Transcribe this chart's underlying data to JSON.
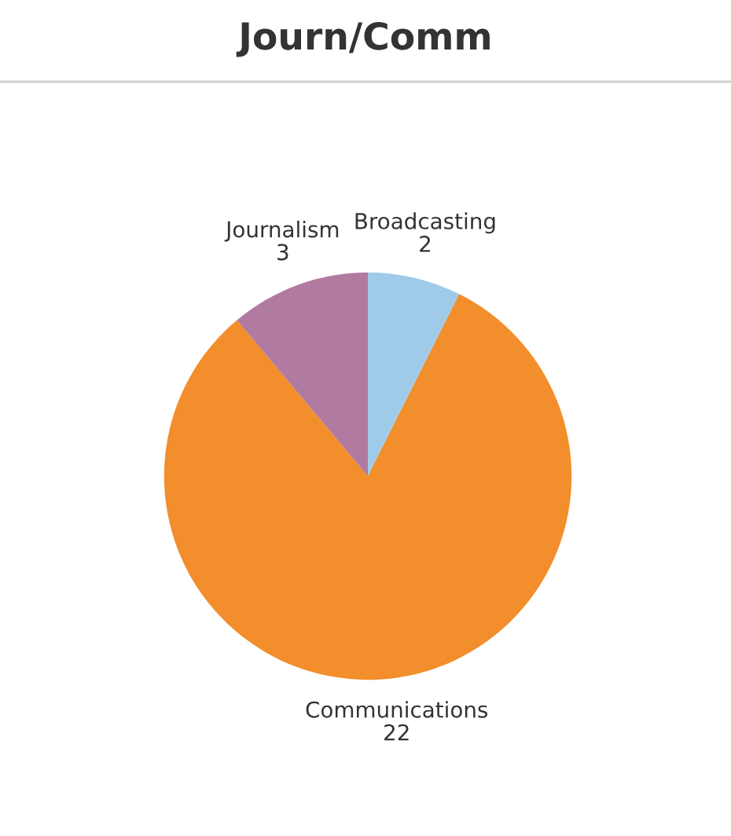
{
  "chart_data": {
    "type": "pie",
    "title": "Journ/Comm",
    "categories": [
      "Broadcasting",
      "Communications",
      "Journalism"
    ],
    "values": [
      2,
      22,
      3
    ],
    "colors": [
      "#9fcae8",
      "#f28e2b",
      "#b07aa1"
    ],
    "data_labels": true
  }
}
